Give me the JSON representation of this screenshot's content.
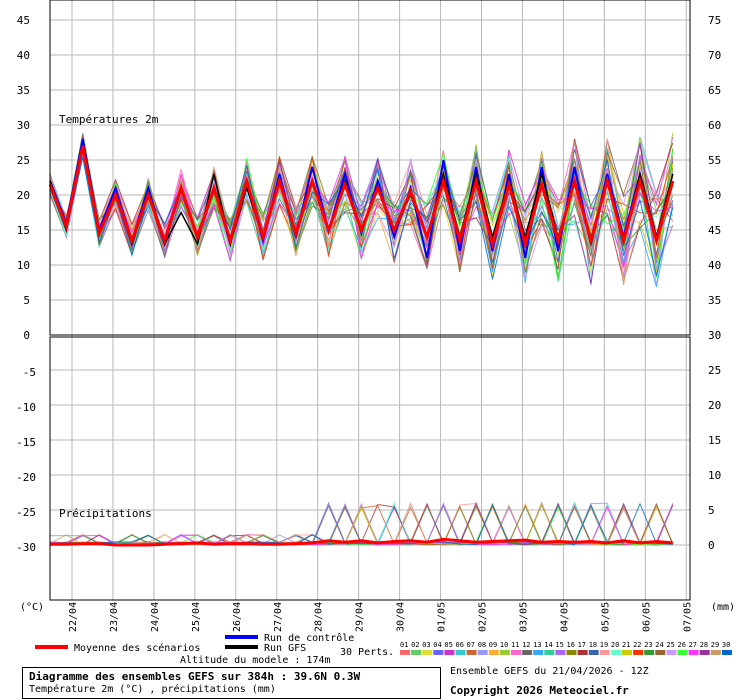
{
  "chart_data": {
    "type": "line",
    "temp_panel": {
      "title": "Températures 2m",
      "left_ticks": [
        "45",
        "40",
        "35",
        "30",
        "25",
        "20",
        "15",
        "10",
        "5",
        "0"
      ],
      "right_ticks": [
        "75",
        "70",
        "65",
        "60",
        "55",
        "50",
        "45",
        "40",
        "35",
        "30"
      ],
      "ylim": [
        0,
        45
      ]
    },
    "precip_panel": {
      "title": "Précipitations",
      "left_ticks": [
        "-5",
        "-10",
        "-15",
        "-20",
        "-25",
        "-30"
      ],
      "right_ticks": [
        "25",
        "20",
        "15",
        "10",
        "5",
        "0"
      ],
      "ylim_mm": [
        -3,
        30
      ]
    },
    "x_labels": [
      "22/04",
      "23/04",
      "24/04",
      "25/04",
      "26/04",
      "27/04",
      "28/04",
      "29/04",
      "30/04",
      "01/05",
      "02/05",
      "03/05",
      "04/05",
      "05/05",
      "06/05",
      "07/05"
    ],
    "unit_left": "(°C)",
    "unit_right": "(mm)",
    "control_run_temp": [
      22,
      16,
      28,
      15,
      21,
      13.5,
      21,
      13,
      21,
      14,
      21,
      13,
      22,
      13.5,
      23,
      14,
      24,
      15,
      23,
      14.5,
      22,
      14,
      21,
      11,
      25,
      12,
      24,
      12,
      23,
      11,
      24,
      12,
      24,
      13,
      23,
      14,
      23,
      14,
      22
    ],
    "gfs_run_temp": [
      22,
      15,
      27,
      14.5,
      20,
      13,
      20,
      13,
      17.5,
      13,
      23,
      13,
      21,
      14,
      22,
      14,
      22,
      15,
      22,
      15,
      21,
      15,
      20,
      14,
      23,
      14,
      23,
      14,
      22,
      14,
      23,
      14,
      22,
      13,
      22,
      13,
      23,
      14,
      23
    ],
    "mean_temp": [
      21.5,
      15.5,
      27,
      14.5,
      20,
      13.5,
      20,
      13.5,
      21,
      14,
      21,
      13.5,
      22,
      14,
      22,
      14.5,
      22,
      15,
      21.5,
      15,
      21,
      15,
      20.5,
      14,
      22,
      13.5,
      22,
      13,
      21.5,
      13,
      21.5,
      13.5,
      22,
      13.5,
      22,
      13.5,
      22,
      13.5,
      22
    ],
    "mean_precip": [
      0.1,
      0.1,
      0.2,
      0.2,
      0,
      0,
      0,
      0.1,
      0.2,
      0.3,
      0.1,
      0.2,
      0.2,
      0.1,
      0.1,
      0.2,
      0.3,
      0.6,
      0.4,
      0.6,
      0.3,
      0.5,
      0.6,
      0.4,
      0.8,
      0.6,
      0.4,
      0.5,
      0.6,
      0.7,
      0.4,
      0.5,
      0.4,
      0.5,
      0.3,
      0.6,
      0.3,
      0.5,
      0.3
    ]
  },
  "legend": {
    "mean_label": "Moyenne des scénarios",
    "control_label": "Run de contrôle",
    "gfs_label": "Run GFS",
    "perts_label": "30 Perts.",
    "pert_numbers": [
      "01",
      "02",
      "03",
      "04",
      "05",
      "06",
      "07",
      "08",
      "09",
      "10",
      "11",
      "12",
      "13",
      "14",
      "15",
      "16",
      "17",
      "18",
      "19",
      "20",
      "21",
      "22",
      "23",
      "24",
      "25",
      "26",
      "27",
      "28",
      "29",
      "30"
    ],
    "pert_colors": [
      "#ff6666",
      "#66cc66",
      "#dddd33",
      "#6666ff",
      "#cc33cc",
      "#33cccc",
      "#cc6633",
      "#9999ff",
      "#ffaa33",
      "#99cc33",
      "#ff66cc",
      "#666666",
      "#33aaff",
      "#33cc99",
      "#aa66ff",
      "#888800",
      "#aa3333",
      "#3366aa",
      "#ff9999",
      "#66ffcc",
      "#cccc00",
      "#ff3300",
      "#339933",
      "#996633",
      "#cc99ff",
      "#33ff33",
      "#ff33ff",
      "#993399",
      "#cc9966",
      "#0066cc"
    ],
    "mean_color": "#ff0000",
    "control_color": "#0000ff",
    "gfs_color": "#000000"
  },
  "footer": {
    "altitude": "Altitude du modele : 174m",
    "title": "Diagramme des ensembles GEFS sur 384h : 39.6N 0.3W",
    "subtitle": "Température 2m (°C) , précipitations (mm)",
    "run": "Ensemble GEFS du 21/04/2026 - 12Z",
    "copyright": "Copyright 2026 Meteociel.fr"
  }
}
